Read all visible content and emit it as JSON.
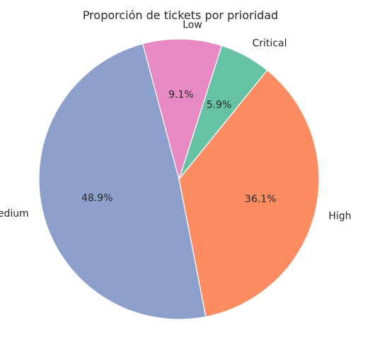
{
  "chart_data": {
    "type": "pie",
    "title": "Proporción de tickets por prioridad",
    "slices": [
      {
        "label": "Medium",
        "value": 48.9,
        "pct_label": "48.9%",
        "color": "#8da0cb"
      },
      {
        "label": "High",
        "value": 36.1,
        "pct_label": "36.1%",
        "color": "#fc8d62"
      },
      {
        "label": "Critical",
        "value": 5.9,
        "pct_label": "5.9%",
        "color": "#66c2a5"
      },
      {
        "label": "Low",
        "value": 9.1,
        "pct_label": "9.1%",
        "color": "#e78ac3"
      }
    ],
    "direction": "counterclockwise",
    "legend": "none"
  }
}
